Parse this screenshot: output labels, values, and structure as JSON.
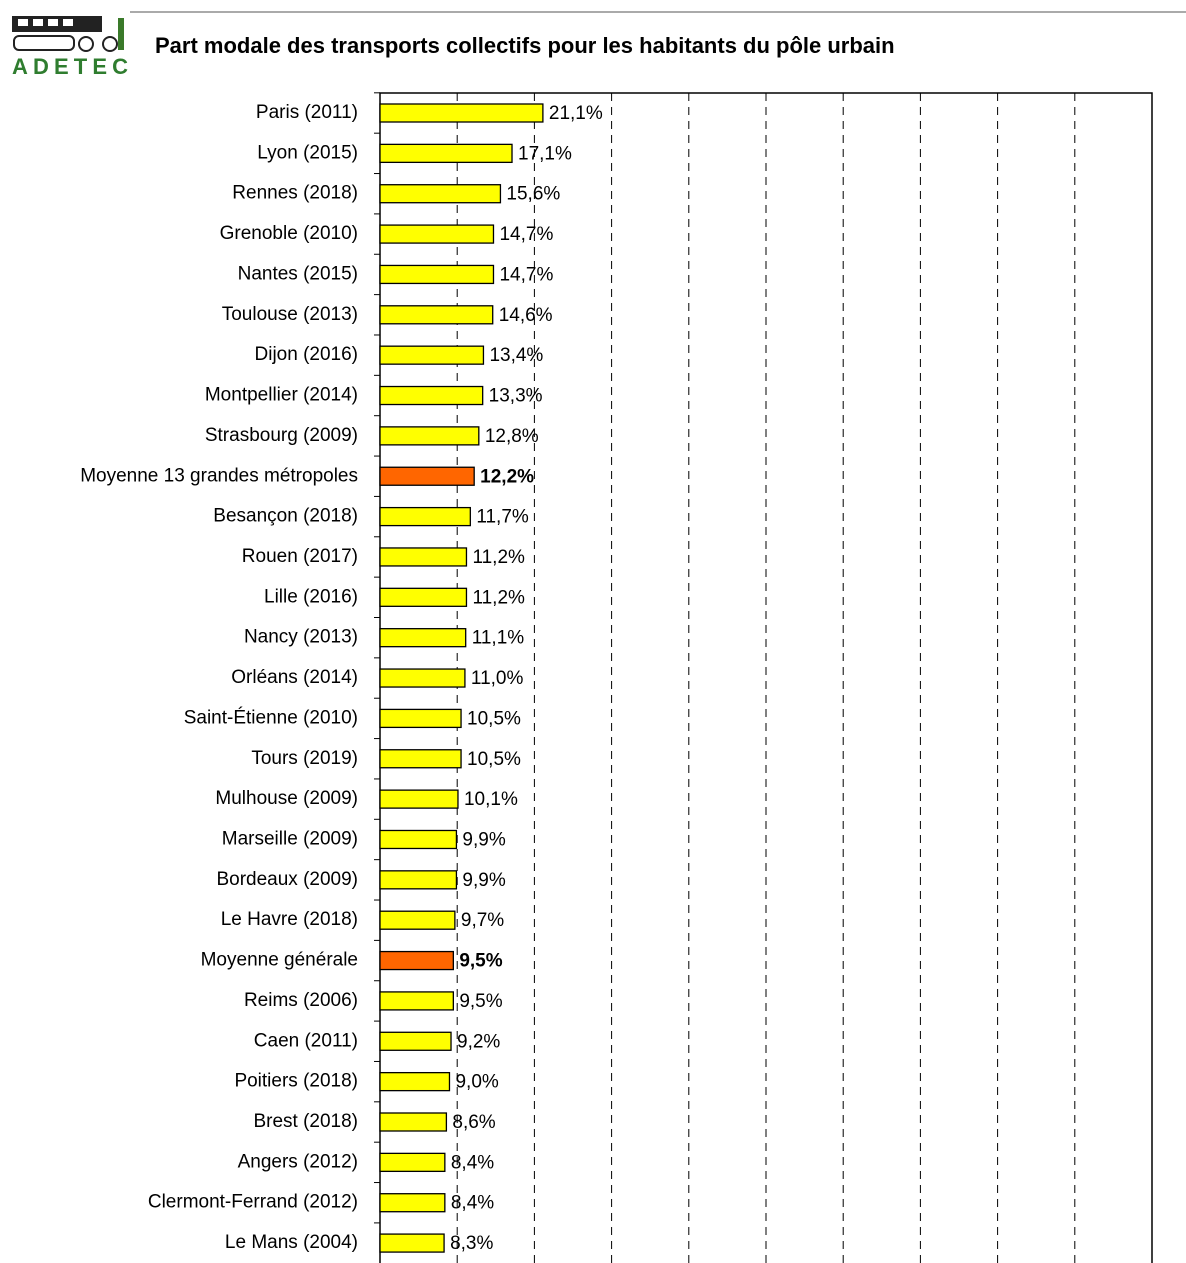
{
  "logo_text": "ADETEC",
  "chart_data": {
    "type": "bar",
    "orientation": "horizontal",
    "title": "Part modale des transports collectifs pour les habitants du pôle urbain",
    "categories": [
      "Paris (2011)",
      "Lyon (2015)",
      "Rennes (2018)",
      "Grenoble (2010)",
      "Nantes (2015)",
      "Toulouse (2013)",
      "Dijon (2016)",
      "Montpellier (2014)",
      "Strasbourg (2009)",
      "Moyenne 13 grandes métropoles",
      "Besançon (2018)",
      "Rouen (2017)",
      "Lille (2016)",
      "Nancy (2013)",
      "Orléans (2014)",
      "Saint-Étienne (2010)",
      "Tours (2019)",
      "Mulhouse (2009)",
      "Marseille (2009)",
      "Bordeaux (2009)",
      "Le Havre (2018)",
      "Moyenne générale",
      "Reims (2006)",
      "Caen (2011)",
      "Poitiers (2018)",
      "Brest (2018)",
      "Angers (2012)",
      "Clermont-Ferrand (2012)",
      "Le Mans (2004)"
    ],
    "values": [
      21.1,
      17.1,
      15.6,
      14.7,
      14.7,
      14.6,
      13.4,
      13.3,
      12.8,
      12.2,
      11.7,
      11.2,
      11.2,
      11.1,
      11.0,
      10.5,
      10.5,
      10.1,
      9.9,
      9.9,
      9.7,
      9.5,
      9.5,
      9.2,
      9.0,
      8.6,
      8.4,
      8.4,
      8.3
    ],
    "value_labels": [
      "21,1%",
      "17,1%",
      "15,6%",
      "14,7%",
      "14,7%",
      "14,6%",
      "13,4%",
      "13,3%",
      "12,8%",
      "12,2%",
      "11,7%",
      "11,2%",
      "11,2%",
      "11,1%",
      "11,0%",
      "10,5%",
      "10,5%",
      "10,1%",
      "9,9%",
      "9,9%",
      "9,7%",
      "9,5%",
      "9,5%",
      "9,2%",
      "9,0%",
      "8,6%",
      "8,4%",
      "8,4%",
      "8,3%"
    ],
    "color": "#ffff00",
    "colors": [
      "#ffff00",
      "#ffff00",
      "#ffff00",
      "#ffff00",
      "#ffff00",
      "#ffff00",
      "#ffff00",
      "#ffff00",
      "#ffff00",
      "#ff6600",
      "#ffff00",
      "#ffff00",
      "#ffff00",
      "#ffff00",
      "#ffff00",
      "#ffff00",
      "#ffff00",
      "#ffff00",
      "#ffff00",
      "#ffff00",
      "#ffff00",
      "#ff6600",
      "#ffff00",
      "#ffff00",
      "#ffff00",
      "#ffff00",
      "#ffff00",
      "#ffff00",
      "#ffff00"
    ],
    "xlim": [
      0,
      100
    ],
    "xticks": [
      0,
      10,
      20,
      30,
      40,
      50,
      60,
      70,
      80,
      90,
      100
    ],
    "grid": true
  }
}
